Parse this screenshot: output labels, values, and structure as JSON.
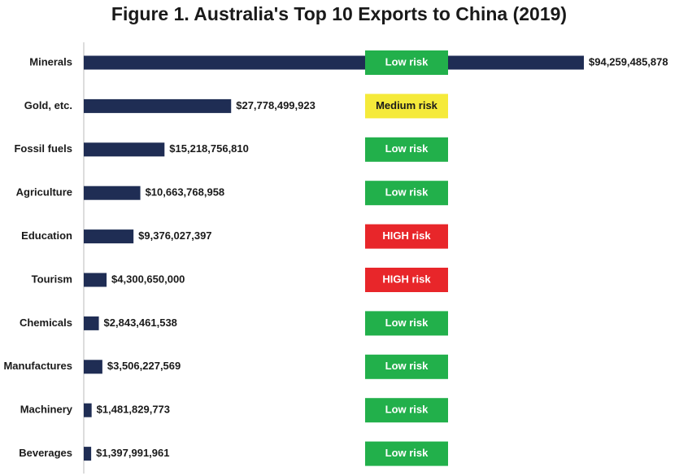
{
  "chart_data": {
    "type": "bar",
    "orientation": "horizontal",
    "title": "Figure 1. Australia's Top 10 Exports to China (2019)",
    "categories": [
      "Minerals",
      "Gold, etc.",
      "Fossil fuels",
      "Agriculture",
      "Education",
      "Tourism",
      "Chemicals",
      "Manufactures",
      "Machinery",
      "Beverages"
    ],
    "values": [
      94259485878,
      27778499923,
      15218756810,
      10663768958,
      9376027397,
      4300650000,
      2843461538,
      3506227569,
      1481829773,
      1397991961
    ],
    "value_labels": [
      "$94,259,485,878",
      "$27,778,499,923",
      "$15,218,756,810",
      "$10,663,768,958",
      "$9,376,027,397",
      "$4,300,650,000",
      "$2,843,461,538",
      "$3,506,227,569",
      "$1,481,829,773",
      "$1,397,991,961"
    ],
    "color": "#1f2d54",
    "xlim": [
      0,
      94259485878
    ],
    "risk_labels": [
      "Low risk",
      "Medium risk",
      "Low risk",
      "Low risk",
      "HIGH risk",
      "HIGH risk",
      "Low risk",
      "Low risk",
      "Low risk",
      "Low risk"
    ],
    "risk_colors": [
      "#22b04b",
      "#f5ea3a",
      "#22b04b",
      "#22b04b",
      "#e8262a",
      "#e8262a",
      "#22b04b",
      "#22b04b",
      "#22b04b",
      "#22b04b"
    ],
    "risk_text_colors": [
      "#ffffff",
      "#1a1a1a",
      "#ffffff",
      "#ffffff",
      "#ffffff",
      "#ffffff",
      "#ffffff",
      "#ffffff",
      "#ffffff",
      "#ffffff"
    ]
  }
}
